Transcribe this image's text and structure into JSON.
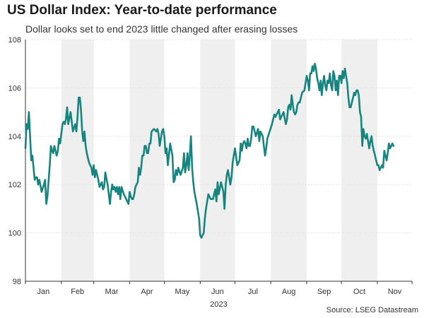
{
  "title": "US Dollar Index: Year-to-date performance",
  "subtitle": "Dollar looks set to end 2023 little changed after erasing losses",
  "source": "Source: LSEG Datastream",
  "chart_data": {
    "type": "line",
    "title": "US Dollar Index: Year-to-date performance",
    "subtitle": "Dollar looks set to end 2023 little changed after erasing losses",
    "xlabel": "2023",
    "ylabel": "",
    "ylim": [
      98,
      108
    ],
    "yticks": [
      98,
      100,
      102,
      104,
      106,
      108
    ],
    "months": [
      "Jan",
      "Feb",
      "Mar",
      "Apr",
      "May",
      "Jun",
      "Jul",
      "Aug",
      "Sep",
      "Oct",
      "Nov"
    ],
    "shaded_months": [
      "Feb",
      "Apr",
      "Jun",
      "Aug",
      "Oct",
      "Dec"
    ],
    "grid": true,
    "series_color": "#17857f",
    "shade_color": "#efefef",
    "series": [
      {
        "name": "US Dollar Index",
        "x_day_of_year": [
          1,
          2,
          3,
          4,
          5,
          6,
          7,
          9,
          10,
          11,
          12,
          13,
          15,
          17,
          18,
          19,
          20,
          22,
          23,
          24,
          25,
          26,
          27,
          28,
          29,
          30,
          31,
          32,
          33,
          34,
          35,
          36,
          37,
          38,
          40,
          42,
          44,
          45,
          46,
          47,
          48,
          49,
          50,
          51,
          52,
          53,
          54,
          56,
          58,
          59,
          60,
          61,
          62,
          64,
          65,
          66,
          67,
          68,
          69,
          70,
          72,
          74,
          75,
          76,
          77,
          78,
          79,
          80,
          81,
          82,
          83,
          84,
          86,
          88,
          89,
          90,
          91,
          92,
          93,
          94,
          95,
          96,
          98,
          99,
          100,
          101,
          102,
          103,
          104,
          105,
          106,
          107,
          108,
          109,
          110,
          112,
          114,
          115,
          116,
          117,
          119,
          120,
          121,
          122,
          123,
          124,
          126,
          128,
          129,
          130,
          131,
          132,
          133,
          135,
          137,
          138,
          139,
          140,
          141,
          142,
          143,
          144,
          145,
          146,
          147,
          149,
          151,
          152,
          153,
          154,
          155,
          156,
          157,
          158,
          159,
          161,
          163,
          164,
          165,
          166,
          167,
          168,
          170,
          172,
          173,
          174,
          175,
          176,
          177,
          178,
          179,
          180,
          182,
          184,
          185,
          186,
          187,
          188,
          189,
          190,
          191,
          192,
          193,
          194,
          195,
          196,
          197,
          198,
          200,
          202,
          203,
          204,
          205,
          206,
          207,
          208,
          209,
          210,
          212,
          214,
          215,
          216,
          217,
          218,
          219,
          220,
          221,
          222,
          224,
          226,
          227,
          228,
          229,
          230,
          231,
          232,
          233,
          234,
          235,
          236,
          237,
          238,
          240,
          242,
          243,
          244,
          245,
          246,
          247,
          248,
          249,
          250,
          251,
          252,
          253,
          254,
          255,
          256,
          257,
          258,
          259,
          260,
          261,
          262,
          263,
          264,
          265,
          266,
          267,
          268,
          269,
          270,
          271,
          272,
          273,
          274,
          275,
          276,
          277,
          278,
          279,
          280,
          281,
          282,
          283,
          284,
          285,
          286,
          287,
          288,
          289,
          290,
          291,
          292,
          293,
          294,
          295,
          296,
          297,
          298,
          299,
          300,
          301,
          302,
          303,
          304,
          305,
          306,
          307,
          308,
          309,
          310,
          311,
          312,
          313,
          314,
          315,
          316,
          317,
          318,
          319,
          320,
          321,
          322,
          323,
          324,
          325,
          326,
          327,
          328,
          329,
          330,
          331,
          332,
          333,
          334,
          335
        ],
        "values": [
          103.5,
          104.5,
          104.3,
          105.0,
          104.0,
          103.0,
          103.2,
          102.2,
          102.3,
          102.3,
          102.0,
          102.2,
          101.7,
          102.0,
          102.2,
          101.2,
          101.5,
          102.8,
          103.6,
          103.4,
          103.3,
          103.6,
          103.4,
          103.2,
          103.4,
          103.9,
          103.7,
          104.1,
          104.5,
          104.6,
          104.5,
          104.7,
          105.2,
          104.5,
          105.0,
          104.2,
          104.5,
          104.2,
          104.8,
          105.6,
          105.6,
          105.1,
          104.2,
          103.8,
          104.2,
          103.6,
          103.3,
          102.9,
          102.7,
          102.4,
          102.8,
          102.3,
          102.6,
          102.2,
          101.9,
          102.0,
          102.1,
          101.8,
          101.9,
          102.5,
          102.0,
          101.2,
          101.7,
          102.0,
          101.8,
          101.9,
          101.7,
          101.9,
          101.6,
          101.9,
          101.4,
          101.9,
          101.6,
          101.4,
          101.3,
          101.2,
          101.7,
          101.5,
          101.4,
          101.4,
          101.6,
          101.9,
          102.1,
          102.7,
          102.4,
          102.7,
          103.2,
          103.2,
          103.6,
          103.6,
          103.3,
          103.3,
          103.7,
          103.7,
          104.2,
          104.3,
          104.2,
          104.3,
          104.1,
          103.6,
          104.2,
          104.3,
          104.0,
          103.3,
          103.5,
          102.8,
          103.7,
          103.2,
          102.1,
          102.2,
          102.6,
          102.4,
          102.7,
          102.4,
          102.7,
          103.3,
          102.5,
          102.8,
          103.3,
          102.6,
          103.2,
          104.0,
          102.7,
          102.1,
          101.7,
          101.2,
          100.6,
          99.9,
          99.8,
          99.9,
          100.0,
          100.6,
          101.0,
          101.3,
          101.6,
          101.4,
          101.4,
          101.6,
          101.8,
          101.3,
          102.1,
          101.6,
          102.1,
          101.7,
          101.0,
          102.0,
          102.4,
          102.6,
          102.3,
          102.0,
          102.3,
          102.9,
          103.5,
          102.8,
          102.9,
          103.0,
          103.7,
          103.4,
          103.7,
          103.8,
          103.7,
          103.5,
          103.9,
          103.6,
          103.6,
          103.9,
          104.4,
          104.4,
          104.0,
          104.3,
          103.8,
          104.2,
          104.1,
          104.0,
          103.6,
          103.2,
          103.5,
          103.9,
          104.2,
          104.5,
          104.7,
          104.9,
          104.8,
          104.9,
          105.0,
          105.1,
          104.7,
          104.8,
          105.0,
          104.5,
          104.7,
          105.2,
          105.3,
          105.1,
          105.7,
          105.3,
          105.0,
          104.9,
          105.0,
          105.3,
          105.4,
          105.4,
          105.8,
          105.9,
          106.2,
          106.5,
          106.3,
          105.9,
          106.6,
          106.6,
          106.9,
          106.7,
          107.0,
          106.8,
          106.4,
          106.2,
          105.9,
          106.3,
          105.7,
          106.2,
          106.5,
          106.1,
          105.9,
          106.3,
          106.2,
          106.6,
          106.1,
          105.9,
          106.7,
          106.5,
          105.9,
          106.3,
          105.7,
          106.5,
          106.5,
          106.2,
          106.7,
          106.4,
          106.8,
          106.5,
          106.2,
          105.6,
          105.2,
          105.2,
          105.4,
          105.6,
          105.8,
          105.7,
          105.9,
          105.9,
          105.7,
          105.0,
          104.8,
          103.6,
          104.3,
          104.0,
          103.9,
          104.1,
          103.8,
          103.5,
          103.8,
          104.0,
          103.6,
          103.4,
          103.2,
          103.0,
          102.8,
          102.8,
          102.6,
          102.7,
          102.8,
          102.7,
          103.4,
          103.2,
          103.0,
          103.3,
          103.7,
          103.5,
          103.6,
          103.7,
          103.6
        ]
      }
    ]
  }
}
